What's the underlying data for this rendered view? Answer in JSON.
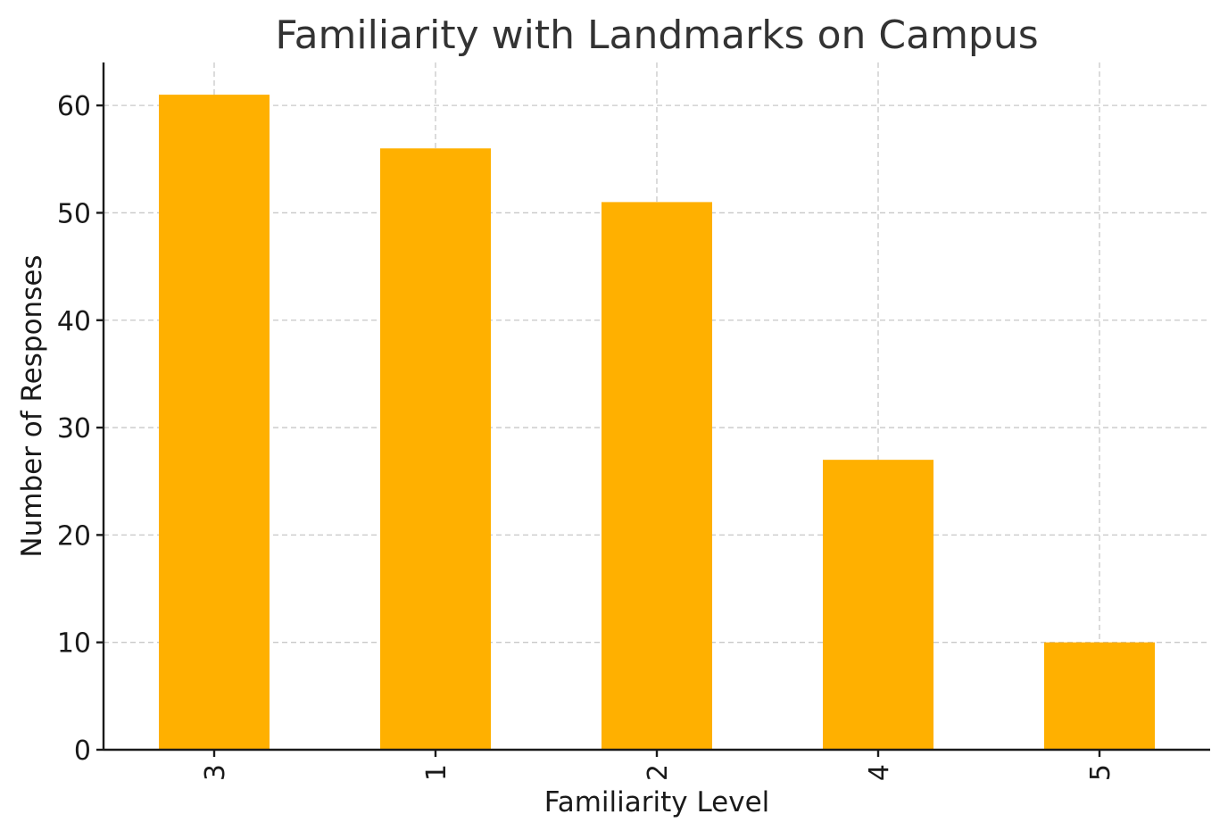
{
  "chart_data": {
    "type": "bar",
    "title": "Familiarity with Landmarks on Campus",
    "xlabel": "Familiarity Level",
    "ylabel": "Number of Responses",
    "categories": [
      "3",
      "1",
      "2",
      "4",
      "5"
    ],
    "values": [
      61,
      56,
      51,
      27,
      10
    ],
    "ylim": [
      0,
      64
    ],
    "yticks": [
      0,
      10,
      20,
      30,
      40,
      50,
      60
    ],
    "grid": true,
    "bar_color": "#ffb000",
    "x_tick_rotation": "vertical"
  }
}
